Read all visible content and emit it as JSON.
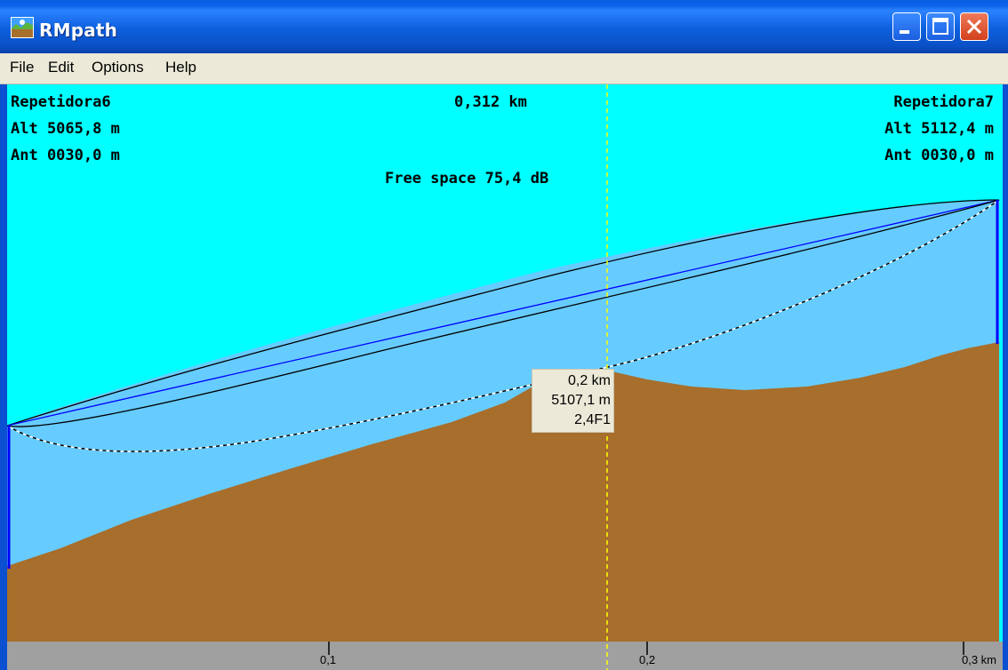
{
  "window": {
    "title": "RMpath"
  },
  "menu": {
    "items": [
      "File",
      "Edit",
      "Options",
      "Help"
    ]
  },
  "site_left": {
    "name": "Repetidora6",
    "alt": "Alt 5065,8 m",
    "ant": "Ant 0030,0 m"
  },
  "site_right": {
    "name": "Repetidora7",
    "alt": "Alt 5112,4 m",
    "ant": "Ant 0030,0 m"
  },
  "link": {
    "distance": "0,312 km",
    "free_space": "Free space 75,4 dB"
  },
  "cursor": {
    "distance": "0,2 km",
    "elevation": "5107,1 m",
    "fresnel": "2,4F1"
  },
  "axis": {
    "ticks": [
      "0,1",
      "0,2",
      "0,3 km"
    ]
  },
  "colors": {
    "sky": "#00ffff",
    "fresnel_zone": "#66ccff",
    "terrain": "#a86e2c",
    "axis_bar": "#a0a0a0",
    "los_line": "#0000ff",
    "cursor_line": "#ffff00",
    "titlebar": "#0a5fe0"
  },
  "icons": {
    "app": "rmpath-app-icon",
    "minimize": "minimize-icon",
    "maximize": "maximize-icon",
    "close": "close-icon"
  }
}
